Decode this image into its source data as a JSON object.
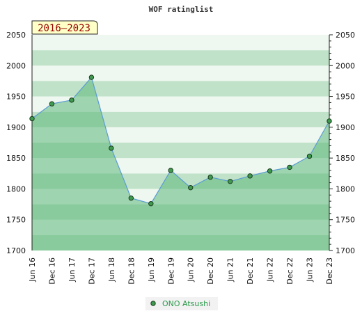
{
  "chart_data": {
    "type": "area",
    "title": "WOF ratinglist",
    "period_badge": "2016–2023",
    "categories": [
      "Jun 16",
      "Dec 16",
      "Jun 17",
      "Dec 17",
      "Jun 18",
      "Dec 18",
      "Jun 19",
      "Dec 19",
      "Jun 20",
      "Dec 20",
      "Jun 21",
      "Dec 21",
      "Jun 22",
      "Dec 22",
      "Jun 23",
      "Dec 23"
    ],
    "series": [
      {
        "name": "ONO Atsushi",
        "values": [
          1914,
          1938,
          1944,
          1981,
          1866,
          1785,
          1776,
          1830,
          1802,
          1819,
          1812,
          1821,
          1829,
          1835,
          1853,
          1910
        ]
      }
    ],
    "ylim": [
      1700,
      2050
    ],
    "y_ticks": [
      1700,
      1750,
      1800,
      1850,
      1900,
      1950,
      2000,
      2050
    ],
    "y_tick_labels": [
      "1700",
      "1750",
      "1800",
      "1850",
      "1900",
      "1950",
      "2000",
      "2050"
    ],
    "grid": true,
    "legend_position": "bottom-center",
    "colors": {
      "line": "#5b9bd5",
      "fill": "#5cb87a",
      "marker_fill": "#3f9a4f",
      "marker_stroke": "#1a3a1a",
      "band_dark": "#bfe2c8",
      "band_light": "#eef7f0",
      "badge_bg": "#ffffc8",
      "badge_text": "#990000",
      "legend_text": "#2a9a4a"
    }
  }
}
